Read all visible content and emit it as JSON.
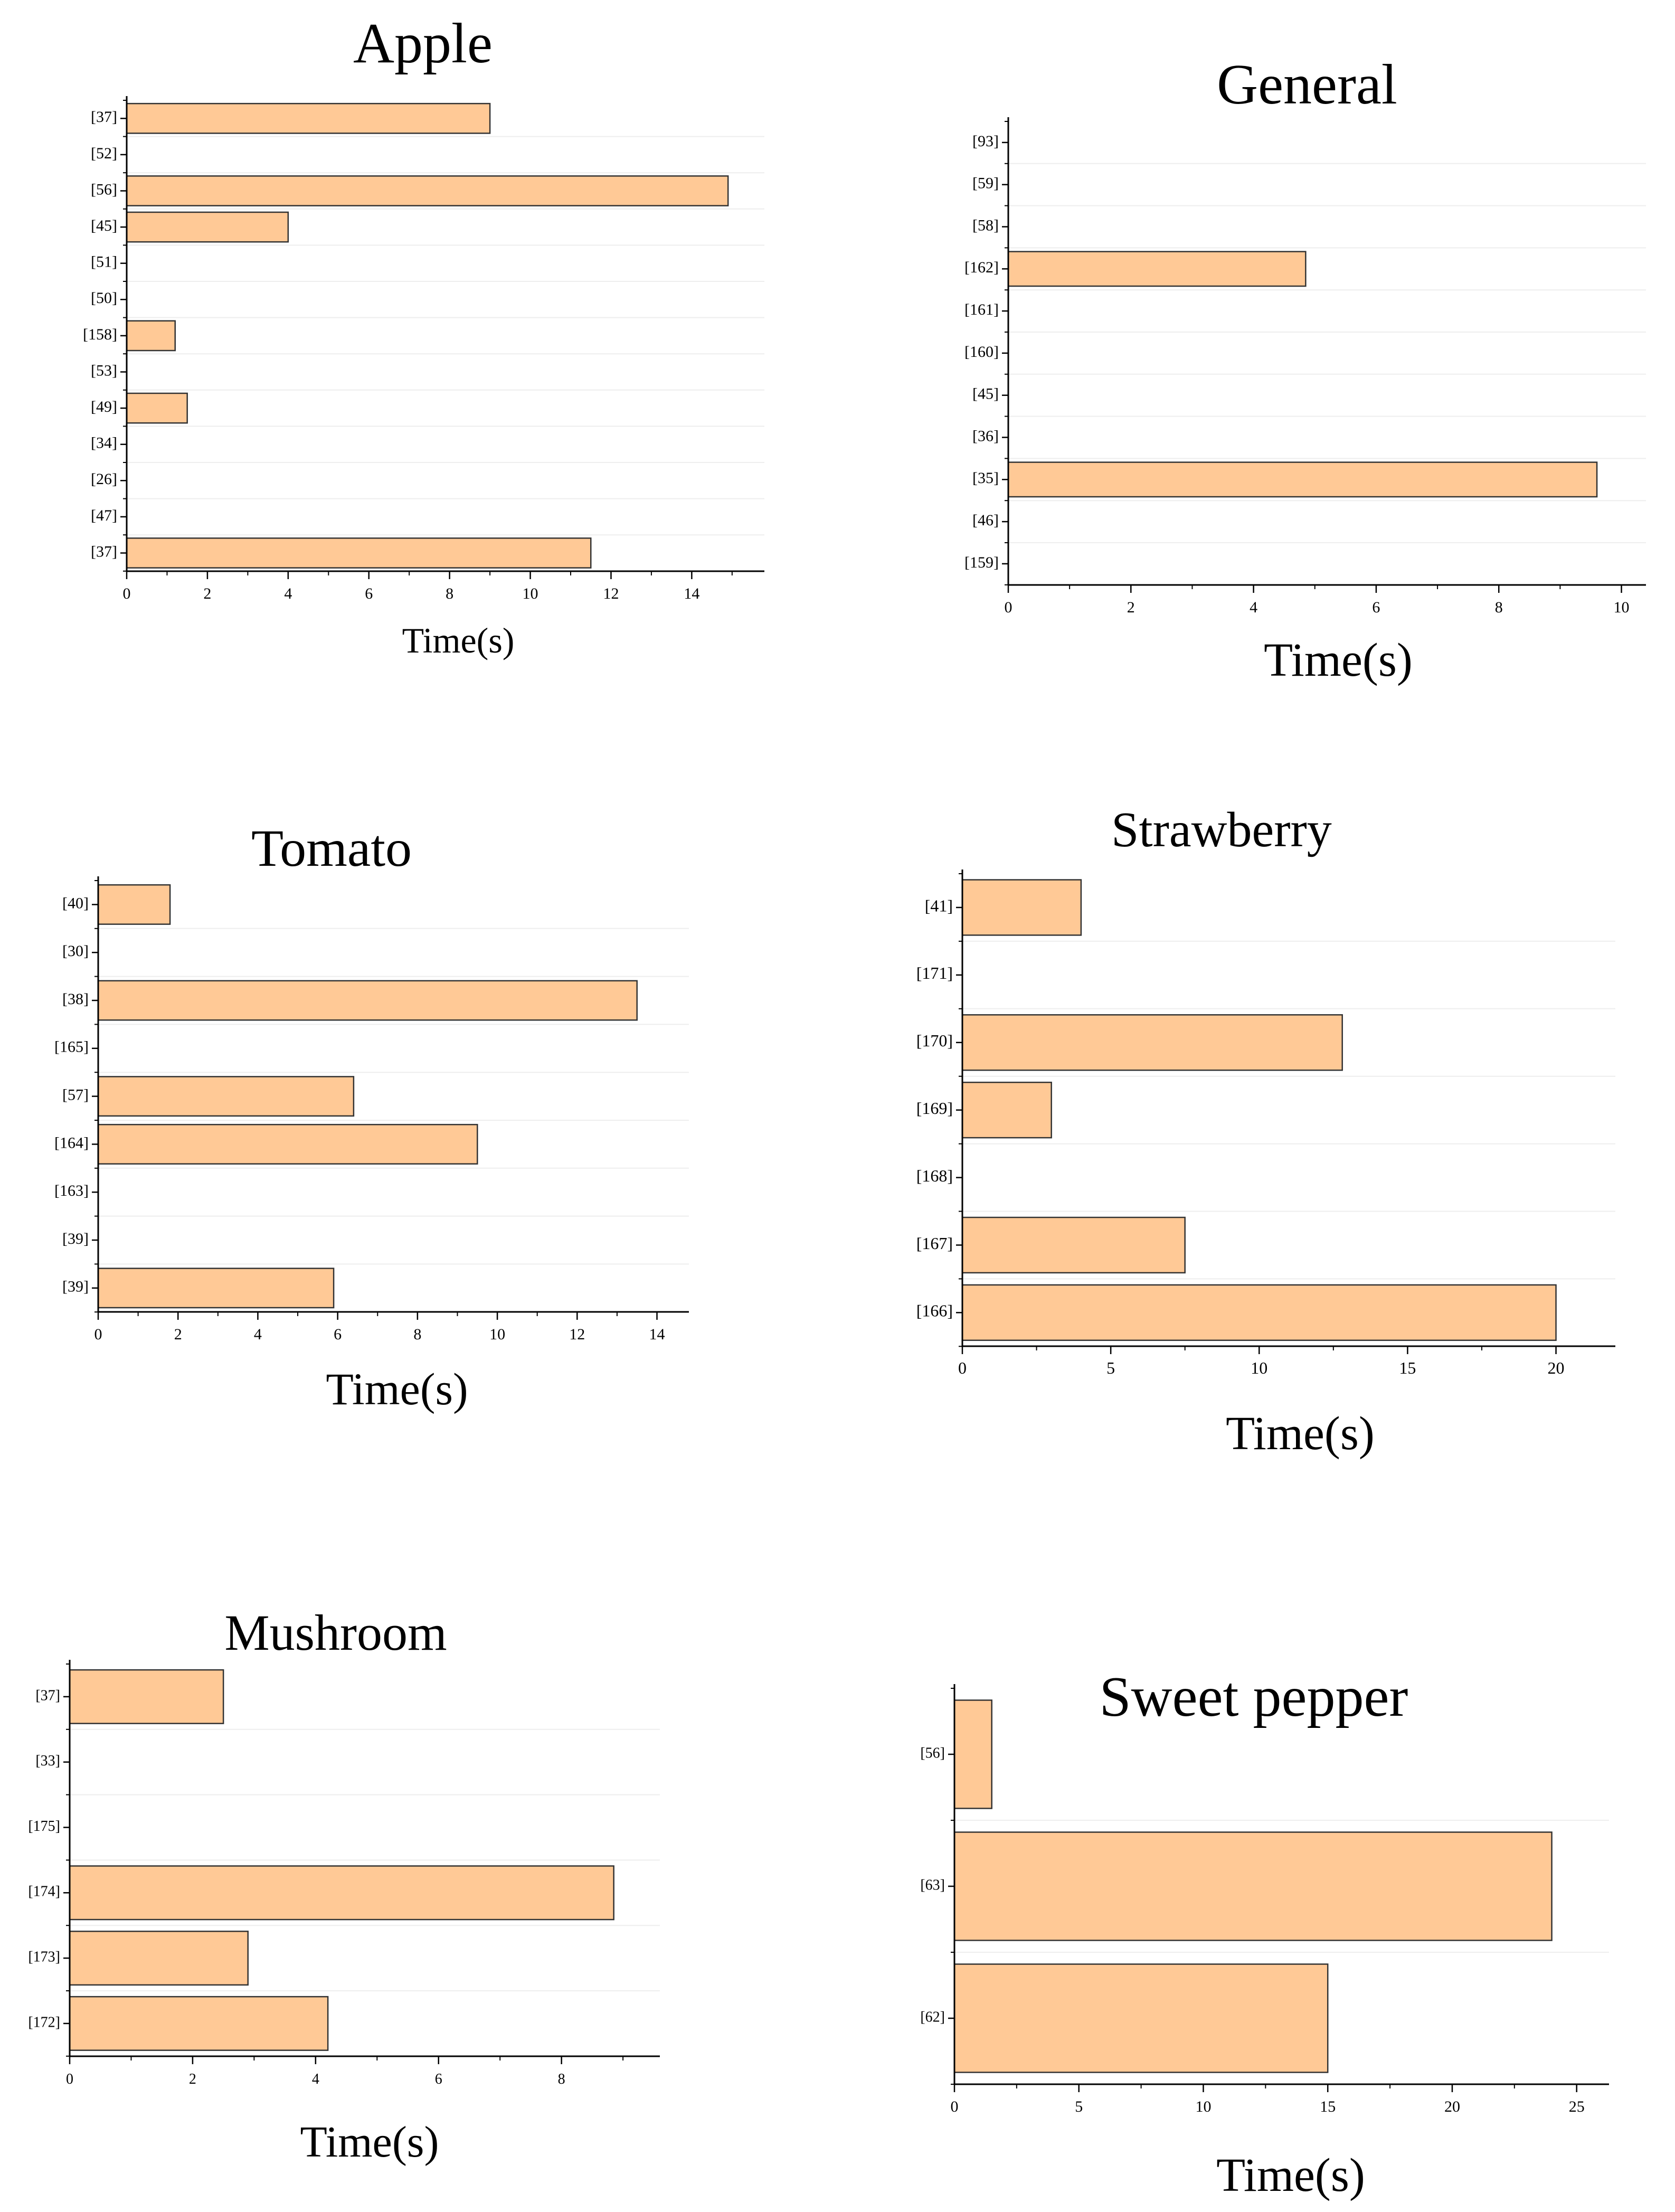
{
  "colors": {
    "bar_fill": "#ffc996",
    "bar_stroke": "#333333",
    "axis": "#000000",
    "grid": "#eeeeee",
    "background": "#ffffff"
  },
  "chart_data": [
    {
      "type": "bar",
      "orientation": "horizontal",
      "title": "Apple",
      "xlabel": "Time(s)",
      "ylabel": "",
      "categories": [
        "[37]",
        "[52]",
        "[56]",
        "[45]",
        "[51]",
        "[50]",
        "[158]",
        "[53]",
        "[49]",
        "[34]",
        "[26]",
        "[47]",
        "[37]"
      ],
      "values": [
        9,
        0,
        14.9,
        4,
        0,
        0,
        1.2,
        0,
        1.5,
        0,
        0,
        0,
        11.5
      ],
      "xlim": [
        0,
        15.8
      ],
      "ticks": [
        0,
        2,
        4,
        6,
        8,
        10,
        12,
        14
      ],
      "minor_step": 1
    },
    {
      "type": "bar",
      "orientation": "horizontal",
      "title": "General",
      "xlabel": "Time(s)",
      "ylabel": "",
      "categories": [
        "[93]",
        "[59]",
        "[58]",
        "[162]",
        "[161]",
        "[160]",
        "[45]",
        "[36]",
        "[35]",
        "[46]",
        "[159]"
      ],
      "values": [
        0,
        0,
        0,
        4.85,
        0,
        0,
        0,
        0,
        9.6,
        0,
        0
      ],
      "xlim": [
        0,
        10.4
      ],
      "ticks": [
        0,
        2,
        4,
        6,
        8,
        10
      ],
      "minor_step": 1
    },
    {
      "type": "bar",
      "orientation": "horizontal",
      "title": "Tomato",
      "xlabel": "Time(s)",
      "ylabel": "",
      "categories": [
        "[40]",
        "[30]",
        "[38]",
        "[165]",
        "[57]",
        "[164]",
        "[163]",
        "[39]",
        "[39]"
      ],
      "values": [
        1.8,
        0,
        13.5,
        0,
        6.4,
        9.5,
        0,
        0,
        5.9
      ],
      "xlim": [
        0,
        14.8
      ],
      "ticks": [
        0,
        2,
        4,
        6,
        8,
        10,
        12,
        14
      ],
      "minor_step": 1
    },
    {
      "type": "bar",
      "orientation": "horizontal",
      "title": "Strawberry",
      "xlabel": "Time(s)",
      "ylabel": "",
      "categories": [
        "[41]",
        "[171]",
        "[170]",
        "[169]",
        "[168]",
        "[167]",
        "[166]"
      ],
      "values": [
        4,
        0,
        12.8,
        3,
        0,
        7.5,
        20
      ],
      "xlim": [
        0,
        22
      ],
      "ticks": [
        0,
        5,
        10,
        15,
        20
      ],
      "minor_step": 2.5
    },
    {
      "type": "bar",
      "orientation": "horizontal",
      "title": "Mushroom",
      "xlabel": "Time(s)",
      "ylabel": "",
      "categories": [
        "[37]",
        "[33]",
        "[175]",
        "[174]",
        "[173]",
        "[172]"
      ],
      "values": [
        2.5,
        0,
        0,
        8.85,
        2.9,
        4.2
      ],
      "xlim": [
        0,
        9.6
      ],
      "ticks": [
        0,
        2,
        4,
        6,
        8
      ],
      "minor_step": 1
    },
    {
      "type": "bar",
      "orientation": "horizontal",
      "title": "Sweet pepper",
      "xlabel": "Time(s)",
      "ylabel": "",
      "categories": [
        "[56]",
        "[63]",
        "[62]"
      ],
      "values": [
        1.5,
        24,
        15
      ],
      "xlim": [
        0,
        26.3
      ],
      "ticks": [
        0,
        5,
        10,
        15,
        20,
        25
      ],
      "minor_step": 2.5
    }
  ]
}
